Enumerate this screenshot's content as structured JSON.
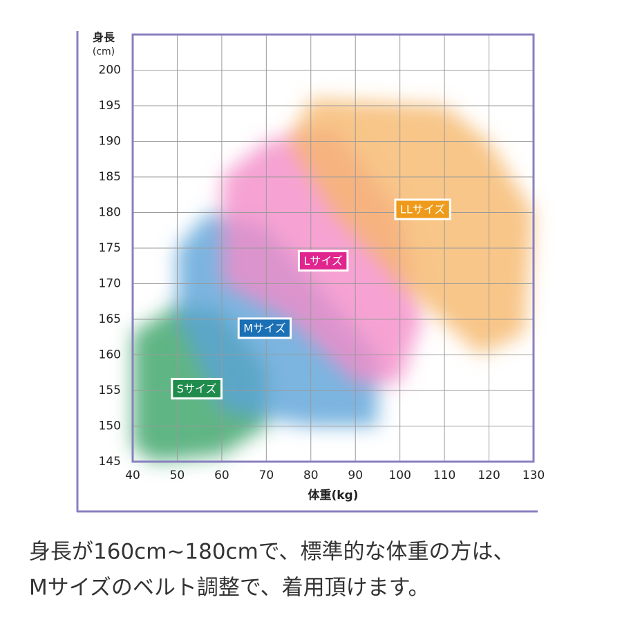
{
  "chart_data": {
    "type": "region",
    "y_label_1": "身長",
    "y_label_2": "(cm)",
    "x_label": "体重(kg)",
    "xlim": [
      40,
      130
    ],
    "ylim": [
      145,
      205
    ],
    "xticks": [
      40,
      50,
      60,
      70,
      80,
      90,
      100,
      110,
      120,
      130
    ],
    "yticks": [
      145,
      150,
      155,
      160,
      165,
      170,
      175,
      180,
      185,
      190,
      195,
      200
    ],
    "grid": true,
    "regions": [
      {
        "name": "Sサイズ",
        "color": "#3aa266",
        "label_color": "#1f8b4c",
        "x": [
          40,
          40,
          50,
          60,
          70,
          70,
          60,
          45
        ],
        "y": [
          147,
          163,
          167,
          166,
          158,
          150,
          146,
          145
        ]
      },
      {
        "name": "Mサイズ",
        "color": "#5aa2d8",
        "label_color": "#1a6fb5",
        "x": [
          50,
          50,
          57,
          70,
          95,
          95,
          80,
          60
        ],
        "y": [
          165,
          175,
          180,
          178,
          160,
          150,
          150,
          152
        ]
      },
      {
        "name": "Lサイズ",
        "color": "#f48cc8",
        "label_color": "#e0258f",
        "x": [
          60,
          60,
          70,
          85,
          100,
          105,
          100,
          90,
          75
        ],
        "y": [
          170,
          185,
          190,
          192,
          180,
          165,
          156,
          156,
          165
        ]
      },
      {
        "name": "LLサイズ",
        "color": "#f6b86c",
        "label_color": "#ee9a1a",
        "x": [
          75,
          80,
          110,
          120,
          130,
          128,
          118,
          100,
          85
        ],
        "y": [
          190,
          196,
          195,
          190,
          180,
          163,
          160,
          170,
          180
        ]
      }
    ]
  },
  "caption": [
    "身長が160cm~180cmで、標準的な体重の方は、",
    "Mサイズのベルト調整で、着用頂けます。"
  ]
}
